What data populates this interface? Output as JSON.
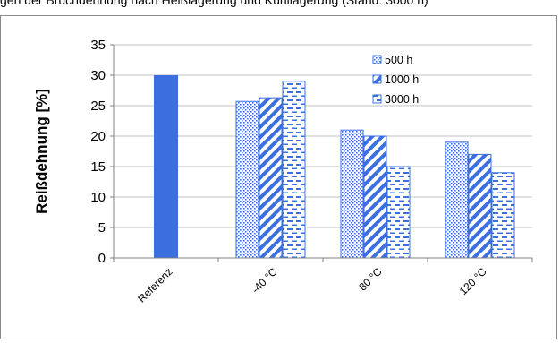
{
  "caption": "gen der Bruchdehnung nach Heißlagerung und Kühllagerung (Stand: 3000 h)",
  "chart_data": {
    "type": "bar",
    "title": "",
    "xlabel": "",
    "ylabel": "Reißdehnung [%]",
    "ylim": [
      0,
      35
    ],
    "yticks": [
      0,
      5,
      10,
      15,
      20,
      25,
      30,
      35
    ],
    "grid": true,
    "legend_position": "top-right-inside",
    "categories": [
      "Referenz",
      "-40 °C",
      "80 °C",
      "120 °C"
    ],
    "reference": {
      "category": "Referenz",
      "value": 30,
      "color": "#3b6fe0"
    },
    "series": [
      {
        "name": "500 h",
        "pattern": "dots",
        "values": [
          null,
          25.7,
          21.0,
          19.0
        ]
      },
      {
        "name": "1000 h",
        "pattern": "diagonal",
        "values": [
          null,
          26.3,
          20.0,
          17.0
        ]
      },
      {
        "name": "3000 h",
        "pattern": "dashes",
        "values": [
          null,
          29.0,
          15.0,
          14.0
        ]
      }
    ],
    "colors": {
      "bar": "#3b6fe0",
      "grid": "#c0c0c0",
      "axis": "#808080"
    }
  }
}
